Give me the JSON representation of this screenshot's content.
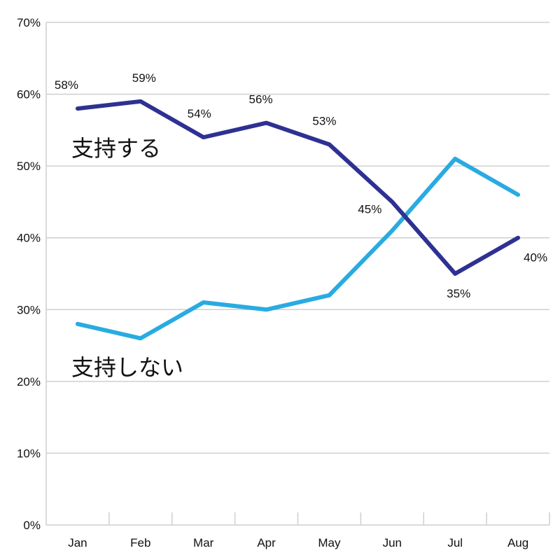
{
  "chart_data": {
    "type": "line",
    "title": "",
    "xlabel": "",
    "ylabel": "",
    "categories": [
      "Jan",
      "Feb",
      "Mar",
      "Apr",
      "May",
      "Jun",
      "Jul",
      "Aug"
    ],
    "ylim": [
      0,
      70
    ],
    "yticks": [
      "0%",
      "10%",
      "20%",
      "30%",
      "40%",
      "50%",
      "60%",
      "70%"
    ],
    "grid": true,
    "series": [
      {
        "name": "支持する",
        "color": "#2e3192",
        "values": [
          58,
          59,
          54,
          56,
          53,
          45,
          35,
          40
        ],
        "labels": [
          "58%",
          "59%",
          "54%",
          "56%",
          "53%",
          "45%",
          "35%",
          "40%"
        ]
      },
      {
        "name": "支持しない",
        "color": "#29abe2",
        "values": [
          28,
          26,
          31,
          30,
          32,
          41,
          51,
          46
        ]
      }
    ]
  }
}
